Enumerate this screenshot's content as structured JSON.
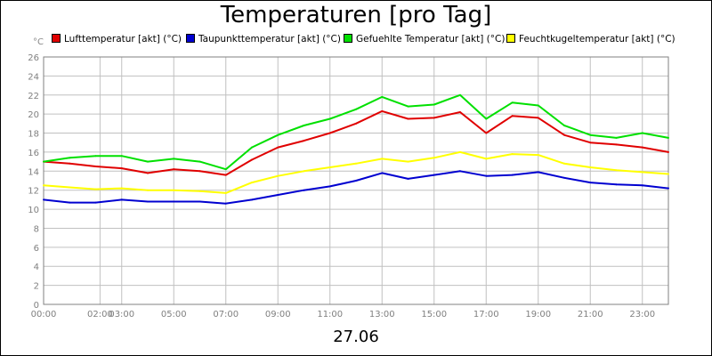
{
  "chart_data": {
    "type": "line",
    "title": "Temperaturen [pro Tag]",
    "ylabel": "°C",
    "xlabel": "27.06",
    "ylim": [
      0,
      26
    ],
    "yticks": [
      0,
      2,
      4,
      6,
      8,
      10,
      12,
      14,
      16,
      18,
      20,
      22,
      24,
      26
    ],
    "xlim": [
      0,
      24
    ],
    "xticks": [
      {
        "h": 0,
        "label": "00:00"
      },
      {
        "h": 2.167,
        "label": "02:00"
      },
      {
        "h": 3.0,
        "label": "03:00"
      },
      {
        "h": 5.0,
        "label": "05:00"
      },
      {
        "h": 7.0,
        "label": "07:00"
      },
      {
        "h": 9.0,
        "label": "09:00"
      },
      {
        "h": 11.0,
        "label": "11:00"
      },
      {
        "h": 13.0,
        "label": "13:00"
      },
      {
        "h": 15.0,
        "label": "15:00"
      },
      {
        "h": 17.0,
        "label": "17:00"
      },
      {
        "h": 19.0,
        "label": "19:00"
      },
      {
        "h": 21.0,
        "label": "21:00"
      },
      {
        "h": 23.0,
        "label": "23:00"
      }
    ],
    "grid": true,
    "legend_position": "top",
    "x": [
      0,
      1,
      2,
      3,
      4,
      5,
      6,
      7,
      8,
      9,
      10,
      11,
      12,
      13,
      14,
      15,
      16,
      17,
      18,
      19,
      20,
      21,
      22,
      23,
      24
    ],
    "series": [
      {
        "name": "Lufttemperatur [akt] (°C)",
        "color": "#e00000",
        "values": [
          15.0,
          14.8,
          14.5,
          14.3,
          13.8,
          14.2,
          14.0,
          13.6,
          15.2,
          16.5,
          17.2,
          18.0,
          19.0,
          20.3,
          19.5,
          19.6,
          20.2,
          18.0,
          19.8,
          19.6,
          17.8,
          17.0,
          16.8,
          16.5,
          16.0
        ]
      },
      {
        "name": "Taupunkttemperatur [akt] (°C)",
        "color": "#0000d0",
        "values": [
          11.0,
          10.7,
          10.7,
          11.0,
          10.8,
          10.8,
          10.8,
          10.6,
          11.0,
          11.5,
          12.0,
          12.4,
          13.0,
          13.8,
          13.2,
          13.6,
          14.0,
          13.5,
          13.6,
          13.9,
          13.3,
          12.8,
          12.6,
          12.5,
          12.2
        ]
      },
      {
        "name": "Gefuehlte Temperatur [akt] (°C)",
        "color": "#00e000",
        "values": [
          15.0,
          15.4,
          15.6,
          15.6,
          15.0,
          15.3,
          15.0,
          14.2,
          16.5,
          17.8,
          18.8,
          19.5,
          20.5,
          21.8,
          20.8,
          21.0,
          22.0,
          19.5,
          21.2,
          20.9,
          18.8,
          17.8,
          17.5,
          18.0,
          17.5
        ]
      },
      {
        "name": "Feuchtkugeltemperatur [akt] (°C)",
        "color": "#ffff00",
        "values": [
          12.5,
          12.3,
          12.1,
          12.2,
          12.0,
          12.0,
          11.9,
          11.7,
          12.8,
          13.5,
          14.0,
          14.4,
          14.8,
          15.3,
          15.0,
          15.4,
          16.0,
          15.3,
          15.8,
          15.7,
          14.8,
          14.4,
          14.1,
          13.9,
          13.7
        ]
      }
    ]
  }
}
